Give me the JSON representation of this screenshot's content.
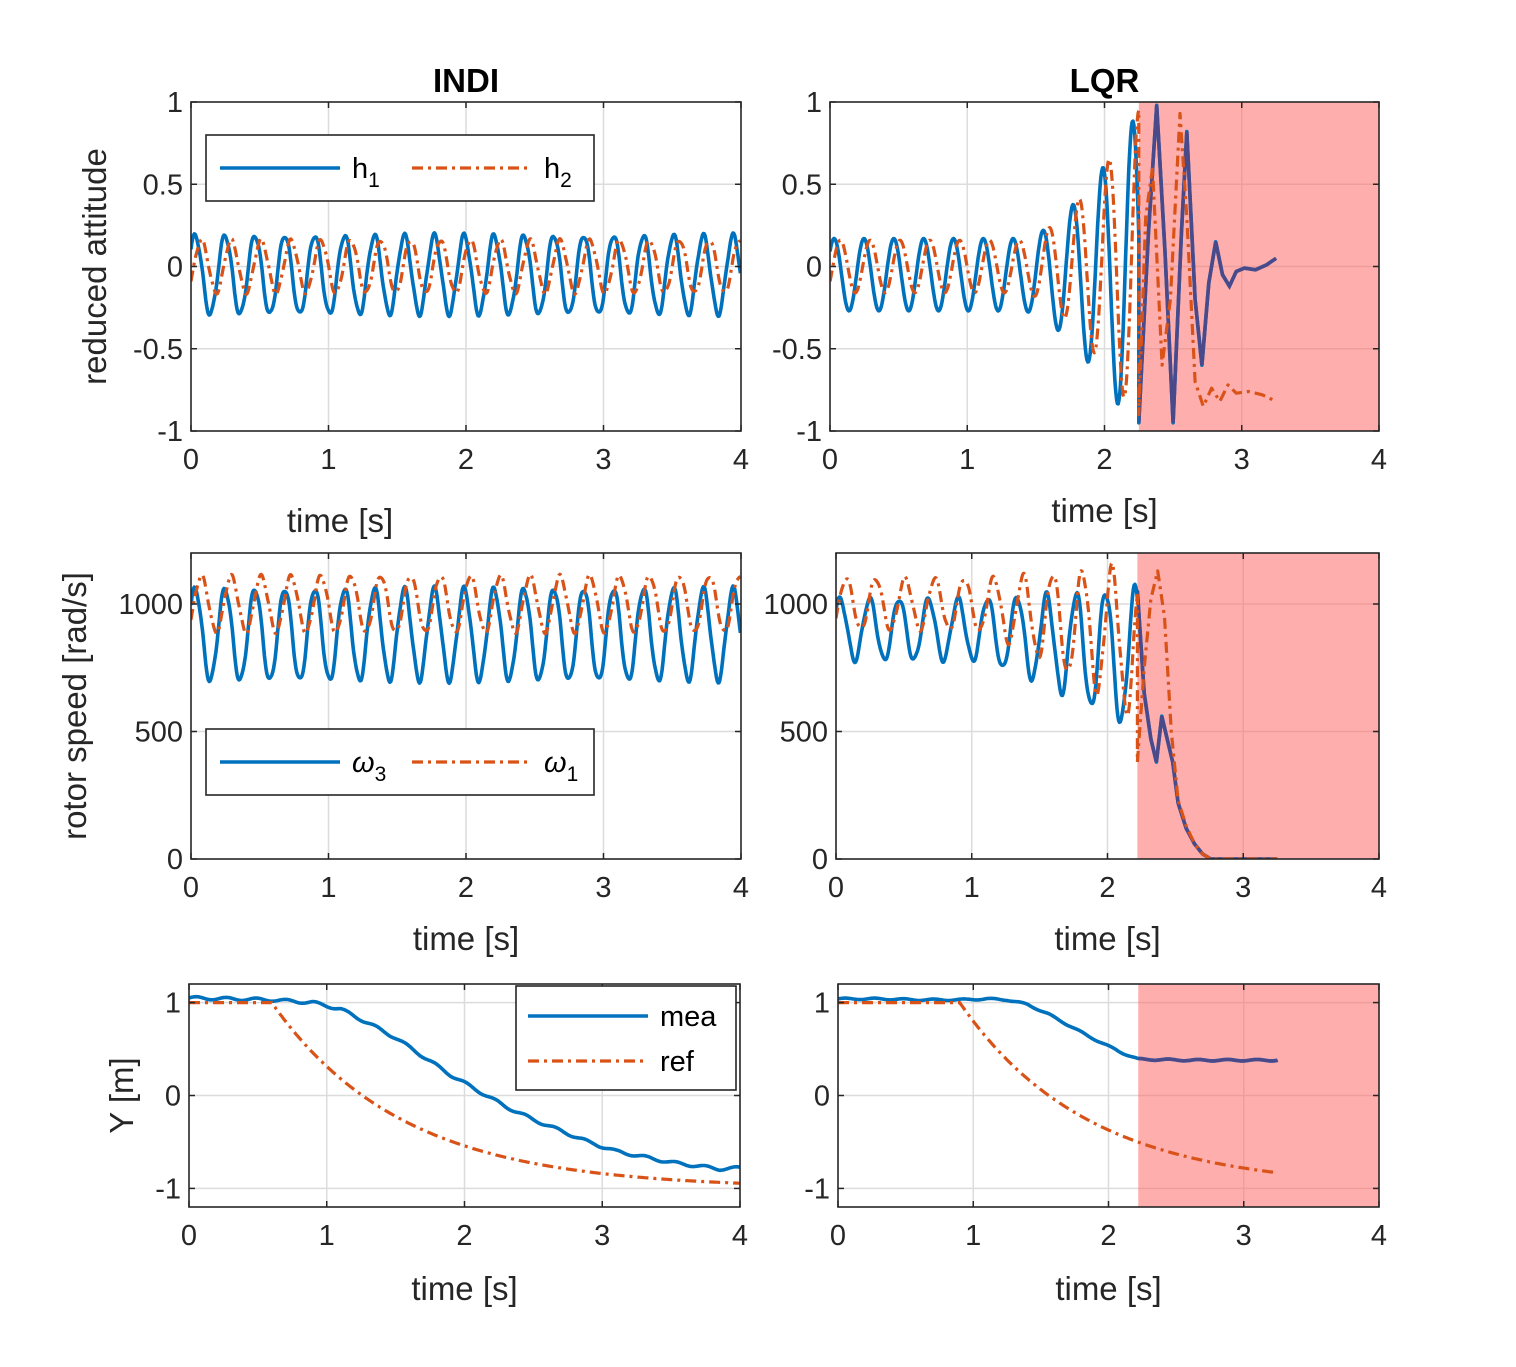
{
  "colors": {
    "series1": "#0072BD",
    "series2": "#D95319",
    "overlay_line": "#4A4A8A",
    "shade": "#FF6B6B"
  },
  "chart_data": [
    {
      "id": "indi-attitude",
      "type": "line",
      "title": "INDI",
      "xlabel": "time [s]",
      "ylabel": "reduced attitude",
      "xlim": [
        0,
        4
      ],
      "ylim": [
        -1,
        1
      ],
      "xticks": [
        "0",
        "1",
        "2",
        "3",
        "4"
      ],
      "yticks": [
        "-1",
        "-0.5",
        "0",
        "0.5",
        "1"
      ],
      "ytick_values": [
        -1,
        -0.5,
        0,
        0.5,
        1
      ],
      "legend": {
        "position": "top-left",
        "orientation": "horizontal",
        "entries": [
          {
            "base": "h",
            "sub": "1",
            "style": "solid"
          },
          {
            "base": "h",
            "sub": "2",
            "style": "dashdot"
          }
        ]
      },
      "series": [
        {
          "name": "h1",
          "style": "solid",
          "model": "osc",
          "t_end": 4,
          "offset": -0.05,
          "amp": 0.24,
          "freq": 4.6,
          "phase": 0.7
        },
        {
          "name": "h2",
          "style": "dashdot",
          "model": "osc",
          "t_end": 4,
          "offset": 0.0,
          "amp": 0.16,
          "freq": 4.6,
          "phase": -0.6
        }
      ]
    },
    {
      "id": "lqr-attitude",
      "type": "line",
      "title": "LQR",
      "xlabel": "time [s]",
      "ylabel": "",
      "xlim": [
        0,
        4
      ],
      "ylim": [
        -1,
        1
      ],
      "xticks": [
        "0",
        "1",
        "2",
        "3",
        "4"
      ],
      "yticks": [
        "-1",
        "-0.5",
        "0",
        "0.5",
        "1"
      ],
      "ytick_values": [
        -1,
        -0.5,
        0,
        0.5,
        1
      ],
      "shaded_region": [
        2.25,
        4
      ],
      "series": [
        {
          "name": "h1",
          "style": "solid",
          "model": "growosc",
          "t_end": 2.25,
          "offset": -0.05,
          "amp0": 0.22,
          "amp1": 1.0,
          "t_grow": 1.4,
          "freq": 4.6,
          "phase": 0.7,
          "tail": [
            [
              2.25,
              -0.95
            ],
            [
              2.32,
              0.2
            ],
            [
              2.38,
              0.98
            ],
            [
              2.44,
              0.1
            ],
            [
              2.5,
              -0.95
            ],
            [
              2.56,
              0.2
            ],
            [
              2.6,
              0.82
            ],
            [
              2.66,
              -0.2
            ],
            [
              2.71,
              -0.6
            ],
            [
              2.76,
              -0.1
            ],
            [
              2.81,
              0.15
            ],
            [
              2.86,
              -0.05
            ],
            [
              2.91,
              -0.12
            ],
            [
              2.96,
              -0.03
            ],
            [
              3.02,
              -0.01
            ],
            [
              3.1,
              -0.02
            ],
            [
              3.18,
              0.01
            ],
            [
              3.25,
              0.05
            ]
          ]
        },
        {
          "name": "h2",
          "style": "dashdot",
          "model": "growosc",
          "t_end": 2.25,
          "offset": 0.0,
          "amp0": 0.16,
          "amp1": 0.95,
          "t_grow": 1.4,
          "freq": 4.6,
          "phase": -0.6,
          "tail": [
            [
              2.25,
              -0.9
            ],
            [
              2.3,
              0.3
            ],
            [
              2.35,
              0.6
            ],
            [
              2.42,
              -0.6
            ],
            [
              2.48,
              -0.2
            ],
            [
              2.55,
              0.93
            ],
            [
              2.6,
              0.3
            ],
            [
              2.66,
              -0.7
            ],
            [
              2.72,
              -0.85
            ],
            [
              2.78,
              -0.74
            ],
            [
              2.84,
              -0.82
            ],
            [
              2.9,
              -0.72
            ],
            [
              2.96,
              -0.77
            ],
            [
              3.05,
              -0.76
            ],
            [
              3.15,
              -0.78
            ],
            [
              3.25,
              -0.82
            ]
          ]
        }
      ]
    },
    {
      "id": "indi-rotor",
      "type": "line",
      "title": "",
      "xlabel": "time [s]",
      "ylabel": "rotor speed [rad/s]",
      "xlim": [
        0,
        4
      ],
      "ylim": [
        0,
        1200
      ],
      "xticks": [
        "0",
        "1",
        "2",
        "3",
        "4"
      ],
      "yticks": [
        "0",
        "500",
        "1000"
      ],
      "ytick_values": [
        0,
        500,
        1000
      ],
      "legend": {
        "position": "bottom-left",
        "orientation": "horizontal",
        "entries": [
          {
            "base": "ω",
            "sub": "3",
            "style": "solid"
          },
          {
            "base": "ω",
            "sub": "1",
            "style": "dashdot"
          }
        ]
      },
      "series": [
        {
          "name": "omega3",
          "style": "solid",
          "model": "osc",
          "t_end": 4,
          "offset": 880,
          "amp": 180,
          "freq": 4.6,
          "phase": 0.7
        },
        {
          "name": "omega1",
          "style": "dashdot",
          "model": "osc",
          "t_end": 4,
          "offset": 1000,
          "amp": 110,
          "freq": 4.6,
          "phase": -0.6
        }
      ]
    },
    {
      "id": "lqr-rotor",
      "type": "line",
      "title": "",
      "xlabel": "time [s]",
      "ylabel": "",
      "xlim": [
        0,
        4
      ],
      "ylim": [
        0,
        1200
      ],
      "xticks": [
        "0",
        "1",
        "2",
        "3",
        "4"
      ],
      "yticks": [
        "0",
        "500",
        "1000"
      ],
      "ytick_values": [
        0,
        500,
        1000
      ],
      "shaded_region": [
        2.22,
        4
      ],
      "series": [
        {
          "name": "omega3",
          "style": "solid",
          "model": "droposc",
          "t_end": 2.22,
          "offset0": 900,
          "offset1": 780,
          "amp0": 120,
          "amp1": 280,
          "t_grow": 1.0,
          "freq": 4.6,
          "phase": 0.7,
          "tail": [
            [
              2.22,
              1050
            ],
            [
              2.27,
              650
            ],
            [
              2.32,
              470
            ],
            [
              2.36,
              380
            ],
            [
              2.4,
              560
            ],
            [
              2.44,
              470
            ],
            [
              2.48,
              380
            ],
            [
              2.52,
              220
            ],
            [
              2.58,
              120
            ],
            [
              2.64,
              60
            ],
            [
              2.7,
              20
            ],
            [
              2.76,
              0
            ],
            [
              3.0,
              0
            ],
            [
              3.25,
              0
            ]
          ]
        },
        {
          "name": "omega1",
          "style": "dashdot",
          "model": "droposc",
          "t_end": 2.22,
          "offset0": 1000,
          "offset1": 850,
          "amp0": 100,
          "amp1": 300,
          "t_grow": 1.0,
          "freq": 4.6,
          "phase": -0.6,
          "tail": [
            [
              2.22,
              380
            ],
            [
              2.27,
              750
            ],
            [
              2.32,
              1020
            ],
            [
              2.37,
              1130
            ],
            [
              2.42,
              950
            ],
            [
              2.47,
              500
            ],
            [
              2.52,
              230
            ],
            [
              2.58,
              130
            ],
            [
              2.64,
              60
            ],
            [
              2.7,
              20
            ],
            [
              2.76,
              0
            ],
            [
              3.0,
              0
            ],
            [
              3.25,
              0
            ]
          ]
        }
      ]
    },
    {
      "id": "indi-y",
      "type": "line",
      "title": "",
      "xlabel": "time [s]",
      "ylabel": "Y [m]",
      "xlim": [
        0,
        4
      ],
      "ylim": [
        -1.2,
        1.2
      ],
      "xticks": [
        "0",
        "1",
        "2",
        "3",
        "4"
      ],
      "yticks": [
        "-1",
        "0",
        "1"
      ],
      "ytick_values": [
        -1,
        0,
        1
      ],
      "legend": {
        "position": "top-right",
        "orientation": "vertical",
        "entries": [
          {
            "base": "mea",
            "sub": "",
            "style": "solid"
          },
          {
            "base": "ref",
            "sub": "",
            "style": "dashdot"
          }
        ]
      },
      "series": [
        {
          "name": "mea",
          "style": "solid",
          "points": [
            [
              0,
              1.05
            ],
            [
              0.3,
              1.04
            ],
            [
              0.6,
              1.03
            ],
            [
              0.9,
              1.0
            ],
            [
              1.1,
              0.93
            ],
            [
              1.3,
              0.78
            ],
            [
              1.5,
              0.62
            ],
            [
              1.7,
              0.42
            ],
            [
              1.9,
              0.22
            ],
            [
              2.1,
              0.05
            ],
            [
              2.3,
              -0.12
            ],
            [
              2.5,
              -0.26
            ],
            [
              2.7,
              -0.38
            ],
            [
              2.9,
              -0.5
            ],
            [
              3.1,
              -0.6
            ],
            [
              3.3,
              -0.66
            ],
            [
              3.5,
              -0.72
            ],
            [
              3.7,
              -0.76
            ],
            [
              3.85,
              -0.79
            ],
            [
              4.0,
              -0.78
            ]
          ],
          "wiggle": 0.015
        },
        {
          "name": "ref",
          "style": "dashdot",
          "model": "ref",
          "t_start": 0.6,
          "t_end": 4,
          "y0": 1.0,
          "y_inf": -1.0,
          "tau": 0.95
        }
      ]
    },
    {
      "id": "lqr-y",
      "type": "line",
      "title": "",
      "xlabel": "time [s]",
      "ylabel": "",
      "xlim": [
        0,
        4
      ],
      "ylim": [
        -1.2,
        1.2
      ],
      "xticks": [
        "0",
        "1",
        "2",
        "3",
        "4"
      ],
      "yticks": [
        "-1",
        "0",
        "1"
      ],
      "ytick_values": [
        -1,
        0,
        1
      ],
      "shaded_region": [
        2.22,
        4
      ],
      "series": [
        {
          "name": "mea",
          "style": "solid",
          "points": [
            [
              0,
              1.04
            ],
            [
              0.3,
              1.04
            ],
            [
              0.6,
              1.03
            ],
            [
              0.9,
              1.03
            ],
            [
              1.1,
              1.04
            ],
            [
              1.25,
              1.03
            ],
            [
              1.4,
              0.98
            ],
            [
              1.55,
              0.88
            ],
            [
              1.7,
              0.76
            ],
            [
              1.85,
              0.64
            ],
            [
              2.0,
              0.53
            ],
            [
              2.1,
              0.46
            ],
            [
              2.22,
              0.39
            ],
            [
              2.6,
              0.38
            ],
            [
              3.0,
              0.38
            ],
            [
              3.25,
              0.38
            ]
          ],
          "wiggle": 0.008
        },
        {
          "name": "ref",
          "style": "dashdot",
          "model": "ref",
          "t_start": 0.9,
          "t_end": 3.25,
          "y0": 1.0,
          "y_inf": -1.0,
          "tau": 0.95
        }
      ]
    }
  ]
}
